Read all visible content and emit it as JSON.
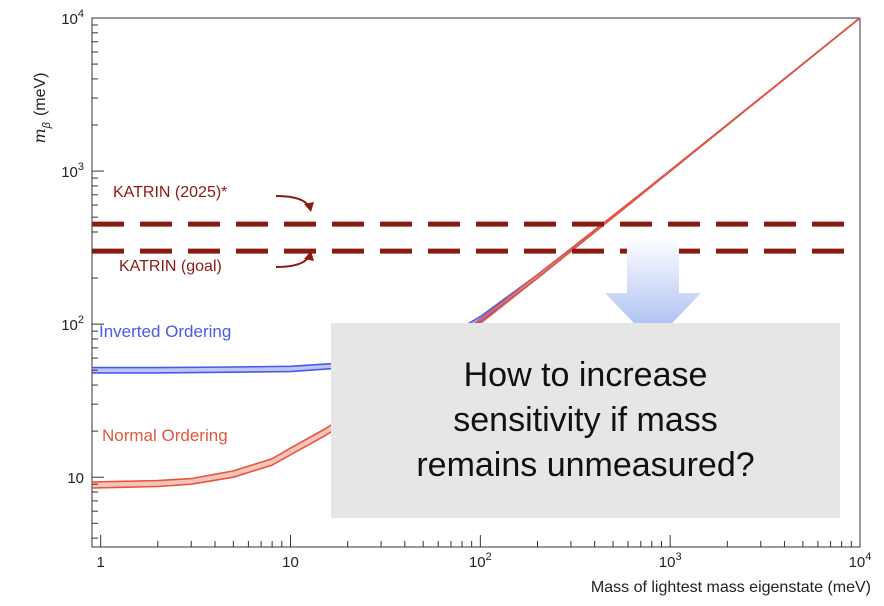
{
  "chart_data": {
    "type": "line",
    "xlabel": "Mass of lightest mass eigenstate (meV)",
    "ylabel": "m",
    "ylabel_sub": "β",
    "ylabel_unit": "(meV)",
    "xscale": "log",
    "yscale": "log",
    "xlim": [
      0.9,
      10000
    ],
    "ylim": [
      3.5,
      10000
    ],
    "x_ticks": [
      {
        "value": 1,
        "label": "1"
      },
      {
        "value": 10,
        "label": "10"
      },
      {
        "value": 100,
        "base": "10",
        "exp": "2"
      },
      {
        "value": 1000,
        "base": "10",
        "exp": "3"
      },
      {
        "value": 10000,
        "base": "10",
        "exp": "4"
      }
    ],
    "y_ticks": [
      {
        "value": 10,
        "label": "10"
      },
      {
        "value": 100,
        "base": "10",
        "exp": "2"
      },
      {
        "value": 1000,
        "base": "10",
        "exp": "3"
      },
      {
        "value": 10000,
        "base": "10",
        "exp": "4"
      }
    ],
    "series": [
      {
        "name": "Inverted Ordering",
        "color": "#4a5ae8",
        "x": [
          0.9,
          2,
          5,
          10,
          20,
          40,
          70,
          100,
          200,
          500,
          1000,
          3000,
          10000
        ],
        "y_low": [
          48,
          48,
          48.5,
          49,
          52,
          61,
          80,
          104,
          200,
          498,
          998,
          2998,
          9998
        ],
        "y_high": [
          52,
          52,
          52.5,
          53,
          56,
          66,
          86,
          112,
          210,
          510,
          1010,
          3010,
          10010
        ]
      },
      {
        "name": "Normal Ordering",
        "color": "#e8553e",
        "x": [
          0.9,
          2,
          3,
          5,
          8,
          10,
          15,
          20,
          30,
          50,
          70,
          100,
          200,
          500,
          1000,
          3000,
          10000
        ],
        "y_low": [
          8.5,
          8.7,
          9.0,
          10.0,
          12.0,
          14.0,
          18.5,
          23.0,
          33.0,
          52,
          72,
          101,
          200,
          498,
          998,
          2998,
          9998
        ],
        "y_high": [
          9.3,
          9.5,
          9.8,
          11.0,
          13.2,
          15.5,
          20.5,
          25.5,
          36.0,
          56,
          77,
          108,
          210,
          510,
          1010,
          3010,
          10010
        ]
      }
    ],
    "limits": [
      {
        "name": "KATRIN (2025)*",
        "value": 450,
        "color": "#8b1a12"
      },
      {
        "name": "KATRIN (goal)",
        "value": 300,
        "color": "#8b1a12"
      }
    ],
    "grid": false
  },
  "annotations": {
    "arrow_color": "#9fb6ee",
    "callout_lines": [
      "How to increase",
      "sensitivity if mass",
      "remains unmeasured?"
    ]
  }
}
